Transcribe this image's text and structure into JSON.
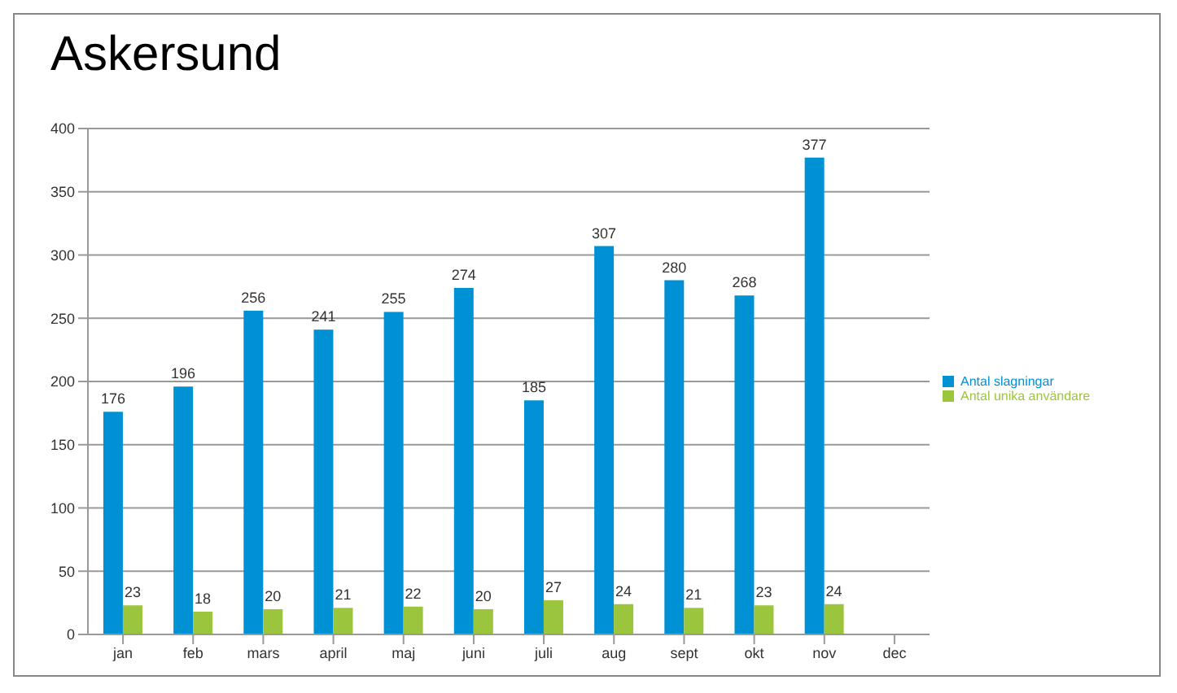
{
  "chart_data": {
    "type": "bar",
    "title": "Askersund",
    "categories": [
      "jan",
      "feb",
      "mars",
      "april",
      "maj",
      "juni",
      "juli",
      "aug",
      "sept",
      "okt",
      "nov",
      "dec"
    ],
    "series": [
      {
        "name": "Antal slagningar",
        "color": "#0091d5",
        "values": [
          176,
          196,
          256,
          241,
          255,
          274,
          185,
          307,
          280,
          268,
          377,
          null
        ]
      },
      {
        "name": "Antal unika användare",
        "color": "#9bc53d",
        "values": [
          23,
          18,
          20,
          21,
          22,
          20,
          27,
          24,
          21,
          23,
          24,
          null
        ]
      }
    ],
    "ylim": [
      0,
      400
    ],
    "yticks": [
      0,
      50,
      100,
      150,
      200,
      250,
      300,
      350,
      400
    ],
    "grid": "y",
    "legend": "right",
    "data_labels": true
  }
}
